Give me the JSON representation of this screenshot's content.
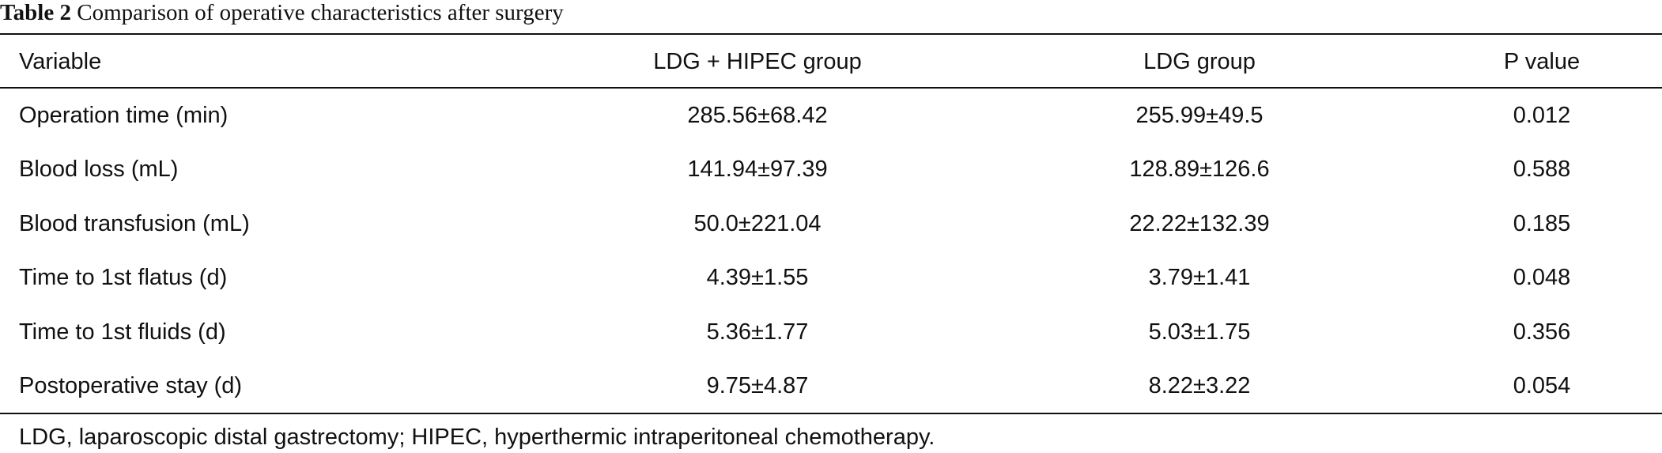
{
  "table": {
    "label": "Table 2",
    "title": "Comparison of operative characteristics after surgery",
    "columns": [
      "Variable",
      "LDG + HIPEC group",
      "LDG group",
      "P value"
    ],
    "rows": [
      [
        "Operation time (min)",
        "285.56±68.42",
        "255.99±49.5",
        "0.012"
      ],
      [
        "Blood loss (mL)",
        "141.94±97.39",
        "128.89±126.6",
        "0.588"
      ],
      [
        "Blood transfusion (mL)",
        "50.0±221.04",
        "22.22±132.39",
        "0.185"
      ],
      [
        "Time to 1st flatus (d)",
        "4.39±1.55",
        "3.79±1.41",
        "0.048"
      ],
      [
        "Time to 1st fluids (d)",
        "5.36±1.77",
        "5.03±1.75",
        "0.356"
      ],
      [
        "Postoperative stay (d)",
        "9.75±4.87",
        "8.22±3.22",
        "0.054"
      ]
    ],
    "footnote": "LDG, laparoscopic distal gastrectomy; HIPEC, hyperthermic intraperitoneal chemotherapy."
  }
}
